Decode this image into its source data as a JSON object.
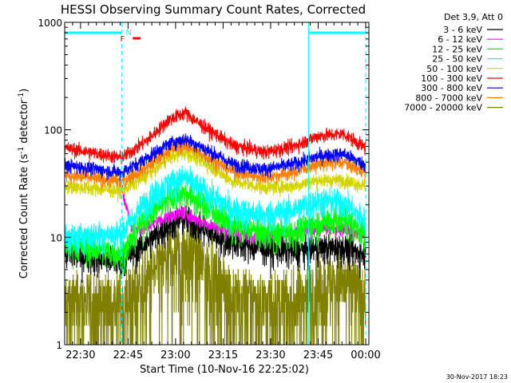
{
  "chart_data": {
    "type": "line",
    "title": "HESSI Observing Summary Count Rates, Corrected",
    "xlabel": "Start Time (10-Nov-16 22:25:02)",
    "ylabel_parts": [
      "Corrected Count Rate (s",
      "-1",
      " detector",
      "-1",
      ")"
    ],
    "x_unit": "minutes after 22:25:02",
    "xlim": [
      0,
      96
    ],
    "ylim": [
      1,
      1000
    ],
    "y_scale": "log",
    "x_ticks": [
      {
        "t": 5,
        "label": "22:30"
      },
      {
        "t": 20,
        "label": "22:45"
      },
      {
        "t": 35,
        "label": "23:00"
      },
      {
        "t": 50,
        "label": "23:15"
      },
      {
        "t": 65,
        "label": "23:30"
      },
      {
        "t": 80,
        "label": "23:45"
      },
      {
        "t": 95,
        "label": "00:00"
      }
    ],
    "y_ticks": [
      {
        "v": 1,
        "label": "1"
      },
      {
        "v": 10,
        "label": "10"
      },
      {
        "v": 100,
        "label": "100"
      },
      {
        "v": 1000,
        "label": "1000"
      }
    ],
    "legend_header": "Det 3,9, Att 0",
    "legend_placement": "right",
    "date_stamp": "30-Nov-2017 18:23",
    "series": [
      {
        "name": "3 - 6 keV",
        "color": "#000000",
        "x": [
          0,
          18,
          26,
          33,
          38,
          43,
          53,
          63,
          72,
          80,
          88,
          95
        ],
        "y": [
          7,
          6,
          9,
          13,
          15,
          12,
          9,
          8,
          7.5,
          8,
          8,
          7
        ]
      },
      {
        "name": "6 - 12 keV",
        "color": "#ff00ff",
        "x": [
          18,
          21,
          25,
          29,
          33,
          38,
          43,
          53,
          63,
          72,
          80,
          88,
          95
        ],
        "y": [
          30,
          12,
          12,
          14,
          16,
          17,
          14,
          11,
          10,
          11,
          12,
          12,
          11
        ]
      },
      {
        "name": "12 - 25 keV",
        "color": "#00ff00",
        "x": [
          0,
          18,
          26,
          33,
          38,
          43,
          53,
          63,
          72,
          80,
          88,
          95
        ],
        "y": [
          9,
          7,
          16,
          24,
          26,
          21,
          13,
          11,
          11,
          14,
          15,
          11
        ]
      },
      {
        "name": "25 - 50 keV",
        "color": "#00ffff",
        "x": [
          0,
          18,
          26,
          33,
          38,
          43,
          53,
          63,
          72,
          80,
          88,
          95
        ],
        "y": [
          10,
          11,
          22,
          32,
          36,
          28,
          18,
          16,
          18,
          22,
          21,
          14
        ]
      },
      {
        "name": "50 - 100 keV",
        "color": "#d4d400",
        "x": [
          0,
          18,
          26,
          33,
          38,
          43,
          53,
          63,
          72,
          80,
          88,
          95
        ],
        "y": [
          30,
          27,
          38,
          55,
          62,
          52,
          33,
          29,
          30,
          34,
          34,
          30
        ]
      },
      {
        "name": "100 - 300 keV",
        "color": "#ff0000",
        "x": [
          0,
          18,
          26,
          33,
          38,
          43,
          53,
          63,
          72,
          80,
          88,
          95
        ],
        "y": [
          68,
          55,
          80,
          125,
          145,
          112,
          72,
          62,
          70,
          88,
          92,
          68
        ]
      },
      {
        "name": "300 - 800 keV",
        "color": "#0000ff",
        "x": [
          0,
          18,
          26,
          33,
          38,
          43,
          53,
          63,
          72,
          80,
          88,
          95
        ],
        "y": [
          47,
          40,
          55,
          75,
          82,
          70,
          48,
          43,
          48,
          57,
          60,
          47
        ]
      },
      {
        "name": "800 - 7000 keV",
        "color": "#ff8000",
        "x": [
          0,
          18,
          26,
          33,
          38,
          43,
          53,
          63,
          72,
          80,
          88,
          95
        ],
        "y": [
          38,
          33,
          45,
          65,
          72,
          60,
          41,
          36,
          40,
          48,
          50,
          40
        ]
      },
      {
        "name": "7000 - 20000 keV",
        "color": "#808000",
        "x": [
          0,
          18,
          26,
          33,
          38,
          43,
          53,
          63,
          72,
          80,
          88,
          95
        ],
        "y": [
          2.5,
          2.5,
          4,
          7,
          8,
          6,
          3,
          2.5,
          2.5,
          3.5,
          4,
          3
        ]
      }
    ],
    "annotations": [
      {
        "text": "N",
        "color": "#00ffff"
      },
      {
        "text": "F",
        "color": "#ff0000"
      }
    ],
    "night_intervals": [
      [
        0,
        18
      ],
      [
        77,
        95
      ]
    ],
    "flag_intervals": [
      [
        21.5,
        24
      ]
    ],
    "vlines": [
      18,
      77,
      95
    ]
  }
}
